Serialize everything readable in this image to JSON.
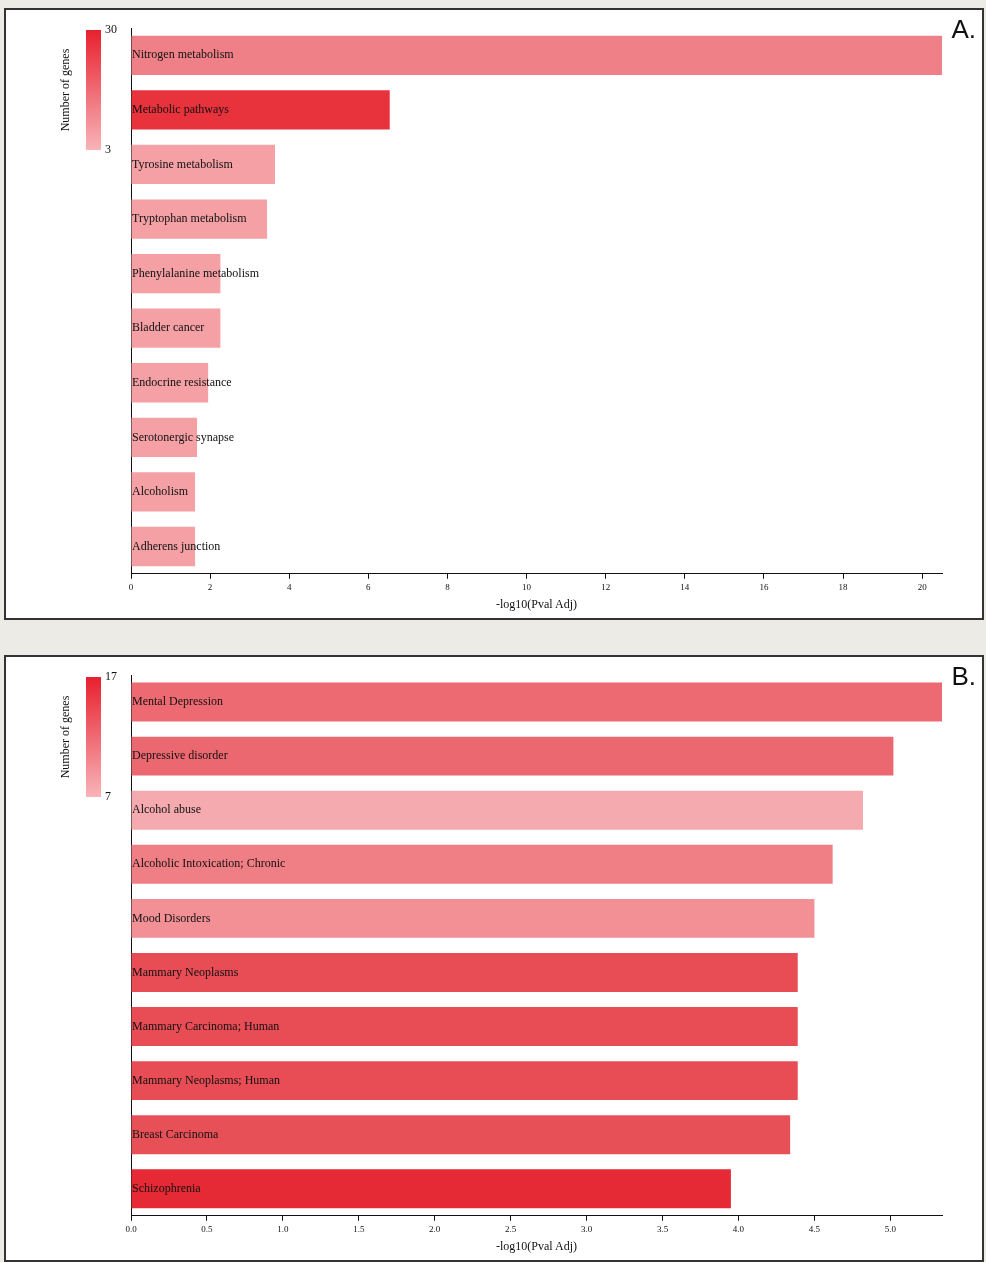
{
  "chart_data": [
    {
      "type": "bar",
      "orientation": "horizontal",
      "title": "A.",
      "xlabel": "-log10(Pval Adj)",
      "clabel": "Number of genes",
      "clim": [
        3,
        30
      ],
      "cticks": [
        3,
        30
      ],
      "grid": false,
      "legend": false,
      "categories": [
        "Nitrogen metabolism",
        "Metabolic pathways",
        "Tyrosine metabolism",
        "Tryptophan metabolism",
        "Phenylalanine metabolism",
        "Bladder cancer",
        "Endocrine resistance",
        "Serotonergic synapse",
        "Alcoholism",
        "Adherens junction"
      ],
      "values": [
        20.5,
        6.54,
        3.64,
        3.44,
        2.26,
        2.26,
        1.95,
        1.67,
        1.62,
        1.62
      ],
      "colors": [
        "#f08088",
        "#e8323c",
        "#f4a0a5",
        "#f4a0a5",
        "#f4a0a5",
        "#f4a0a5",
        "#f4a0a5",
        "#f4a0a5",
        "#f4a0a5",
        "#f4a0a5"
      ],
      "xlim": [
        0,
        20.5
      ],
      "xticks": [
        0,
        2,
        4,
        6,
        8,
        10,
        12,
        14,
        16,
        18,
        20
      ]
    },
    {
      "type": "bar",
      "orientation": "horizontal",
      "title": "B.",
      "xlabel": "-log10(Pval Adj)",
      "clabel": "Number of genes",
      "clim": [
        7,
        17
      ],
      "cticks": [
        7,
        17
      ],
      "grid": false,
      "legend": false,
      "categories": [
        "Mental Depression",
        "Depressive disorder",
        "Alcohol abuse",
        "Alcoholic Intoxication; Chronic",
        "Mood Disorders",
        "Mammary Neoplasms",
        "Mammary Carcinoma; Human",
        "Mammary Neoplasms; Human",
        "Breast Carcinoma",
        "Schizophrenia"
      ],
      "values": [
        5.34,
        5.02,
        4.82,
        4.62,
        4.5,
        4.39,
        4.39,
        4.39,
        4.34,
        3.95
      ],
      "colors": [
        "#ee6a72",
        "#ec6870",
        "#f4aaae",
        "#f07e85",
        "#f29096",
        "#e84c55",
        "#e84c55",
        "#e84c55",
        "#e85058",
        "#e62a35"
      ],
      "xlim": [
        0,
        5.34
      ],
      "xticks": [
        {
          "value": 0,
          "label": "0.0"
        },
        {
          "value": 0.5,
          "label": "0.5"
        },
        {
          "value": 1,
          "label": "1.0"
        },
        {
          "value": 1.5,
          "label": "1.5"
        },
        {
          "value": 2,
          "label": "2.0"
        },
        {
          "value": 2.5,
          "label": "2.5"
        },
        {
          "value": 3,
          "label": "3.0"
        },
        {
          "value": 3.5,
          "label": "3.5"
        },
        {
          "value": 4,
          "label": "4.0"
        },
        {
          "value": 4.5,
          "label": "4.5"
        },
        {
          "value": 5,
          "label": "5.0"
        }
      ]
    }
  ]
}
